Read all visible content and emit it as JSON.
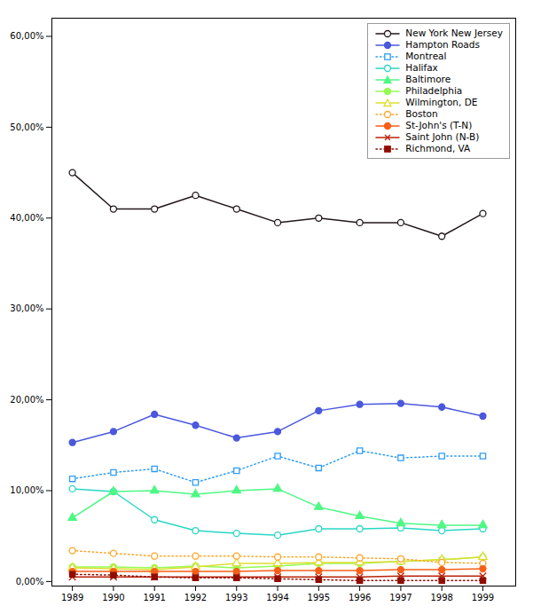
{
  "chart_data": {
    "type": "line",
    "x": [
      1989,
      1990,
      1991,
      1992,
      1993,
      1994,
      1995,
      1996,
      1997,
      1998,
      1999
    ],
    "series": [
      {
        "name": "New York New Jersey",
        "values": [
          0.45,
          0.41,
          0.41,
          0.425,
          0.41,
          0.395,
          0.4,
          0.395,
          0.395,
          0.38,
          0.405
        ],
        "marker": "circle-open",
        "line_style": "solid"
      },
      {
        "name": "Hampton Roads",
        "values": [
          0.153,
          0.165,
          0.184,
          0.172,
          0.158,
          0.165,
          0.188,
          0.195,
          0.196,
          0.192,
          0.182
        ],
        "marker": "circle",
        "line_style": "solid"
      },
      {
        "name": "Montreal",
        "values": [
          0.113,
          0.12,
          0.124,
          0.109,
          0.122,
          0.138,
          0.125,
          0.144,
          0.136,
          0.138,
          0.138
        ],
        "marker": "square-open",
        "line_style": "dotted"
      },
      {
        "name": "Halifax",
        "values": [
          0.102,
          0.099,
          0.068,
          0.056,
          0.053,
          0.051,
          0.058,
          0.058,
          0.059,
          0.056,
          0.058
        ],
        "marker": "circle-open",
        "line_style": "solid"
      },
      {
        "name": "Baltimore",
        "values": [
          0.07,
          0.099,
          0.1,
          0.096,
          0.1,
          0.102,
          0.082,
          0.072,
          0.064,
          0.062,
          0.062
        ],
        "marker": "triangle",
        "line_style": "solid"
      },
      {
        "name": "Philadelphia",
        "values": [
          0.016,
          0.016,
          0.015,
          0.017,
          0.015,
          0.017,
          0.02,
          0.02,
          0.022,
          0.024,
          0.027
        ],
        "marker": "circle",
        "line_style": "solid"
      },
      {
        "name": "Wilmington, DE",
        "values": [
          0.015,
          0.014,
          0.013,
          0.016,
          0.02,
          0.02,
          0.021,
          0.021,
          0.022,
          0.024,
          0.027
        ],
        "marker": "triangle-open",
        "line_style": "solid"
      },
      {
        "name": "Boston",
        "values": [
          0.034,
          0.031,
          0.028,
          0.028,
          0.028,
          0.027,
          0.027,
          0.026,
          0.025,
          0.021,
          0.02
        ],
        "marker": "circle-open",
        "line_style": "dotted"
      },
      {
        "name": "St-John's (T-N)",
        "values": [
          0.011,
          0.011,
          0.011,
          0.011,
          0.011,
          0.012,
          0.012,
          0.012,
          0.013,
          0.013,
          0.014
        ],
        "marker": "circle",
        "line_style": "solid"
      },
      {
        "name": "Saint John (N-B)",
        "values": [
          0.005,
          0.005,
          0.005,
          0.005,
          0.005,
          0.005,
          0.005,
          0.005,
          0.006,
          0.006,
          0.006
        ],
        "marker": "times",
        "line_style": "solid"
      },
      {
        "name": "Richmond, VA",
        "values": [
          0.008,
          0.007,
          0.005,
          0.004,
          0.004,
          0.003,
          0.002,
          0.001,
          0.001,
          0.001,
          0.001
        ],
        "marker": "square",
        "line_style": "dotted"
      }
    ],
    "xlim": [
      1988.5,
      1999.8
    ],
    "xticks": [
      1989,
      1990,
      1991,
      1992,
      1993,
      1994,
      1995,
      1996,
      1997,
      1998,
      1999
    ],
    "ylim": [
      -0.005,
      0.62
    ],
    "yticks": [
      {
        "value": 0.0,
        "label": "0,00%"
      },
      {
        "value": 0.1,
        "label": "10,00%"
      },
      {
        "value": 0.2,
        "label": "20,00%"
      },
      {
        "value": 0.3,
        "label": "30,00%"
      },
      {
        "value": 0.4,
        "label": "40,00%"
      },
      {
        "value": 0.5,
        "label": "50,00%"
      },
      {
        "value": 0.6,
        "label": "60,00%"
      }
    ],
    "grid": false,
    "legend": "upper right"
  }
}
